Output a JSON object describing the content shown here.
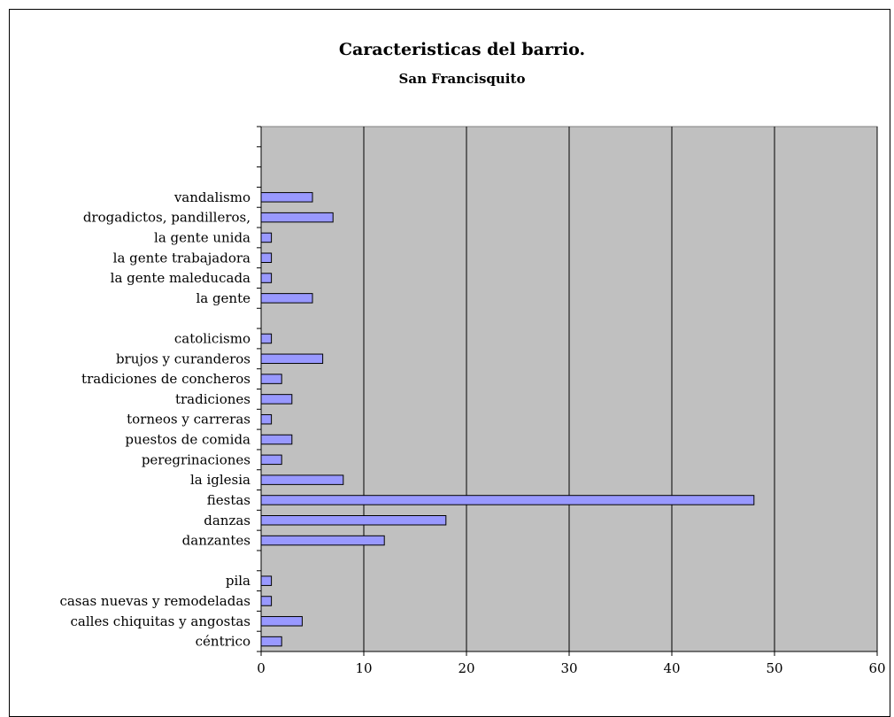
{
  "chart_data": {
    "type": "bar",
    "orientation": "horizontal",
    "title": "Caracteristicas del barrio.",
    "subtitle": "San Francisquito",
    "xlim": [
      0,
      60
    ],
    "x_ticks": [
      "0",
      "10",
      "20",
      "30",
      "40",
      "50",
      "60"
    ],
    "grid": "vertical",
    "legend": "none",
    "colors": {
      "plot_bg": "#c0c0c0",
      "bar_fill": "#9999ff",
      "bar_stroke": "#000000",
      "grid": "#000000"
    },
    "categories": [
      "céntrico",
      "calles chiquitas y angostas",
      "casas nuevas y remodeladas",
      "pila",
      "",
      "danzantes",
      "danzas",
      "fiestas",
      "la iglesia",
      "peregrinaciones",
      "puestos de comida",
      "torneos y carreras",
      "tradiciones",
      "tradiciones de concheros",
      "brujos y curanderos",
      "catolicismo",
      "",
      "la gente",
      "la gente maleducada",
      "la gente trabajadora",
      "la gente unida",
      "drogadictos, pandilleros,",
      "vandalismo",
      "",
      "",
      ""
    ],
    "values": [
      2,
      4,
      1,
      1,
      null,
      12,
      18,
      48,
      8,
      2,
      3,
      1,
      3,
      2,
      6,
      1,
      null,
      5,
      1,
      1,
      1,
      7,
      5,
      null,
      null,
      null
    ]
  }
}
